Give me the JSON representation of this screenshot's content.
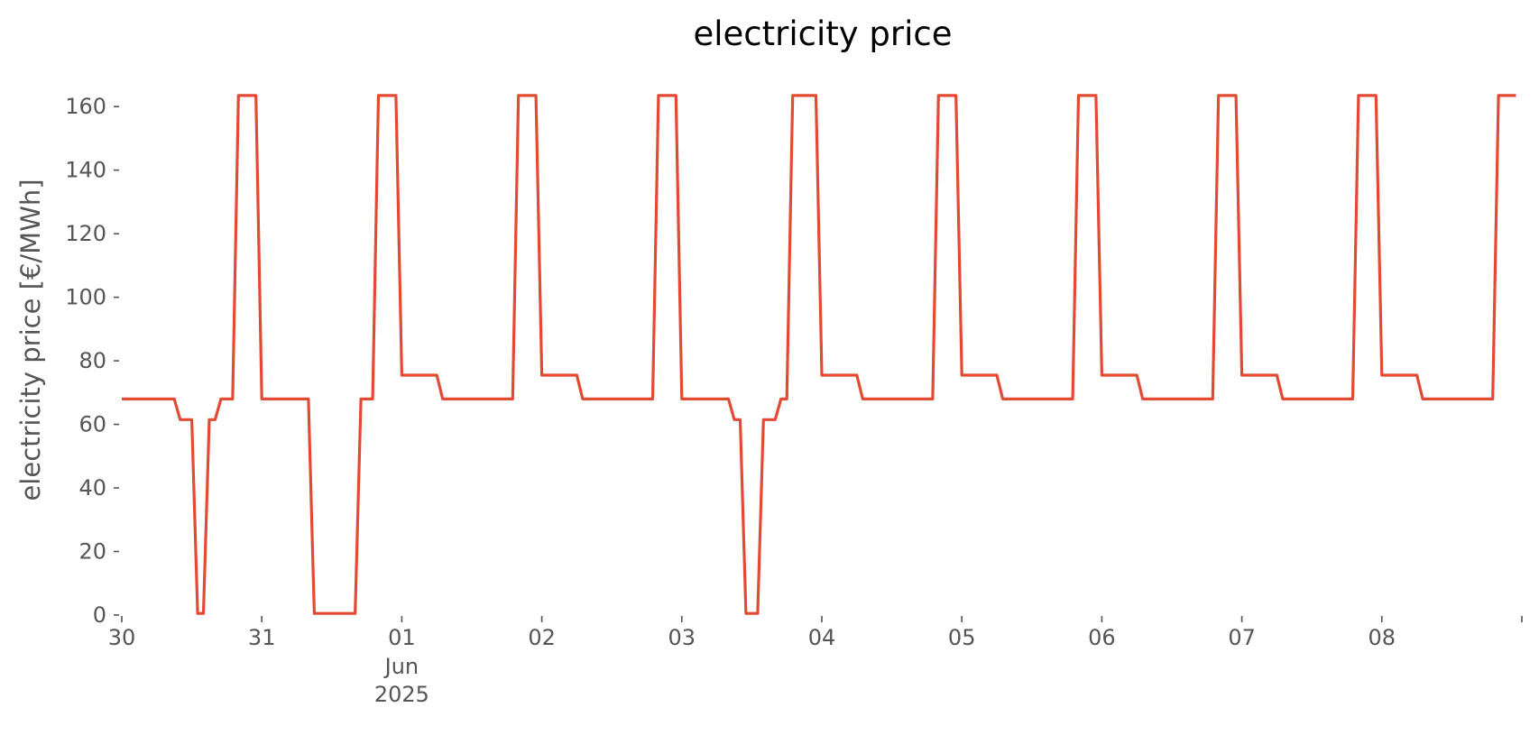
{
  "chart_data": {
    "type": "line",
    "title": "electricity price",
    "xlabel": "",
    "ylabel": "electricity price [€/MWh]",
    "ylim": [
      0,
      168
    ],
    "xlim": [
      "2025-05-30T00:00",
      "2025-06-08T23:00"
    ],
    "grid": false,
    "x_ticks": [
      {
        "x": "2025-05-30",
        "label": "30"
      },
      {
        "x": "2025-05-31",
        "label": "31"
      },
      {
        "x": "2025-06-01",
        "label": "01",
        "sub": [
          "Jun",
          "2025"
        ]
      },
      {
        "x": "2025-06-02",
        "label": "02"
      },
      {
        "x": "2025-06-03",
        "label": "03"
      },
      {
        "x": "2025-06-04",
        "label": "04"
      },
      {
        "x": "2025-06-05",
        "label": "05"
      },
      {
        "x": "2025-06-06",
        "label": "06"
      },
      {
        "x": "2025-06-07",
        "label": "07"
      },
      {
        "x": "2025-06-08",
        "label": "08"
      },
      {
        "x": "2025-06-09",
        "label": ""
      }
    ],
    "y_ticks": [
      0,
      20,
      40,
      60,
      80,
      100,
      120,
      140,
      160
    ],
    "series": [
      {
        "color": "#E24A33",
        "points": [
          [
            "2025-05-30T00:00",
            68
          ],
          [
            "2025-05-30T09:00",
            68
          ],
          [
            "2025-05-30T10:00",
            61.5
          ],
          [
            "2025-05-30T12:00",
            61.5
          ],
          [
            "2025-05-30T13:00",
            0.5
          ],
          [
            "2025-05-30T14:00",
            0.5
          ],
          [
            "2025-05-30T15:00",
            61.5
          ],
          [
            "2025-05-30T16:00",
            61.5
          ],
          [
            "2025-05-30T17:00",
            68
          ],
          [
            "2025-05-30T19:00",
            68
          ],
          [
            "2025-05-30T20:00",
            163.5
          ],
          [
            "2025-05-30T23:00",
            163.5
          ],
          [
            "2025-05-31T00:00",
            68
          ],
          [
            "2025-05-31T08:00",
            68
          ],
          [
            "2025-05-31T09:00",
            0.5
          ],
          [
            "2025-05-31T16:00",
            0.5
          ],
          [
            "2025-05-31T17:00",
            68
          ],
          [
            "2025-05-31T19:00",
            68
          ],
          [
            "2025-05-31T20:00",
            163.5
          ],
          [
            "2025-05-31T23:00",
            163.5
          ],
          [
            "2025-06-01T00:00",
            75.5
          ],
          [
            "2025-06-01T06:00",
            75.5
          ],
          [
            "2025-06-01T07:00",
            68
          ],
          [
            "2025-06-01T19:00",
            68
          ],
          [
            "2025-06-01T20:00",
            163.5
          ],
          [
            "2025-06-01T23:00",
            163.5
          ],
          [
            "2025-06-02T00:00",
            75.5
          ],
          [
            "2025-06-02T06:00",
            75.5
          ],
          [
            "2025-06-02T07:00",
            68
          ],
          [
            "2025-06-02T19:00",
            68
          ],
          [
            "2025-06-02T20:00",
            163.5
          ],
          [
            "2025-06-02T23:00",
            163.5
          ],
          [
            "2025-06-03T00:00",
            68
          ],
          [
            "2025-06-03T08:00",
            68
          ],
          [
            "2025-06-03T09:00",
            61.5
          ],
          [
            "2025-06-03T10:00",
            61.5
          ],
          [
            "2025-06-03T11:00",
            0.5
          ],
          [
            "2025-06-03T13:00",
            0.5
          ],
          [
            "2025-06-03T14:00",
            61.5
          ],
          [
            "2025-06-03T16:00",
            61.5
          ],
          [
            "2025-06-03T17:00",
            68
          ],
          [
            "2025-06-03T18:00",
            68
          ],
          [
            "2025-06-03T19:00",
            163.5
          ],
          [
            "2025-06-03T23:00",
            163.5
          ],
          [
            "2025-06-04T00:00",
            75.5
          ],
          [
            "2025-06-04T06:00",
            75.5
          ],
          [
            "2025-06-04T07:00",
            68
          ],
          [
            "2025-06-04T19:00",
            68
          ],
          [
            "2025-06-04T20:00",
            163.5
          ],
          [
            "2025-06-04T23:00",
            163.5
          ],
          [
            "2025-06-05T00:00",
            75.5
          ],
          [
            "2025-06-05T06:00",
            75.5
          ],
          [
            "2025-06-05T07:00",
            68
          ],
          [
            "2025-06-05T19:00",
            68
          ],
          [
            "2025-06-05T20:00",
            163.5
          ],
          [
            "2025-06-05T23:00",
            163.5
          ],
          [
            "2025-06-06T00:00",
            75.5
          ],
          [
            "2025-06-06T06:00",
            75.5
          ],
          [
            "2025-06-06T07:00",
            68
          ],
          [
            "2025-06-06T19:00",
            68
          ],
          [
            "2025-06-06T20:00",
            163.5
          ],
          [
            "2025-06-06T23:00",
            163.5
          ],
          [
            "2025-06-07T00:00",
            75.5
          ],
          [
            "2025-06-07T06:00",
            75.5
          ],
          [
            "2025-06-07T07:00",
            68
          ],
          [
            "2025-06-07T19:00",
            68
          ],
          [
            "2025-06-07T20:00",
            163.5
          ],
          [
            "2025-06-07T23:00",
            163.5
          ],
          [
            "2025-06-08T00:00",
            75.5
          ],
          [
            "2025-06-08T06:00",
            75.5
          ],
          [
            "2025-06-08T07:00",
            68
          ],
          [
            "2025-06-08T19:00",
            68
          ],
          [
            "2025-06-08T20:00",
            163.5
          ],
          [
            "2025-06-08T23:00",
            163.5
          ]
        ]
      }
    ]
  }
}
